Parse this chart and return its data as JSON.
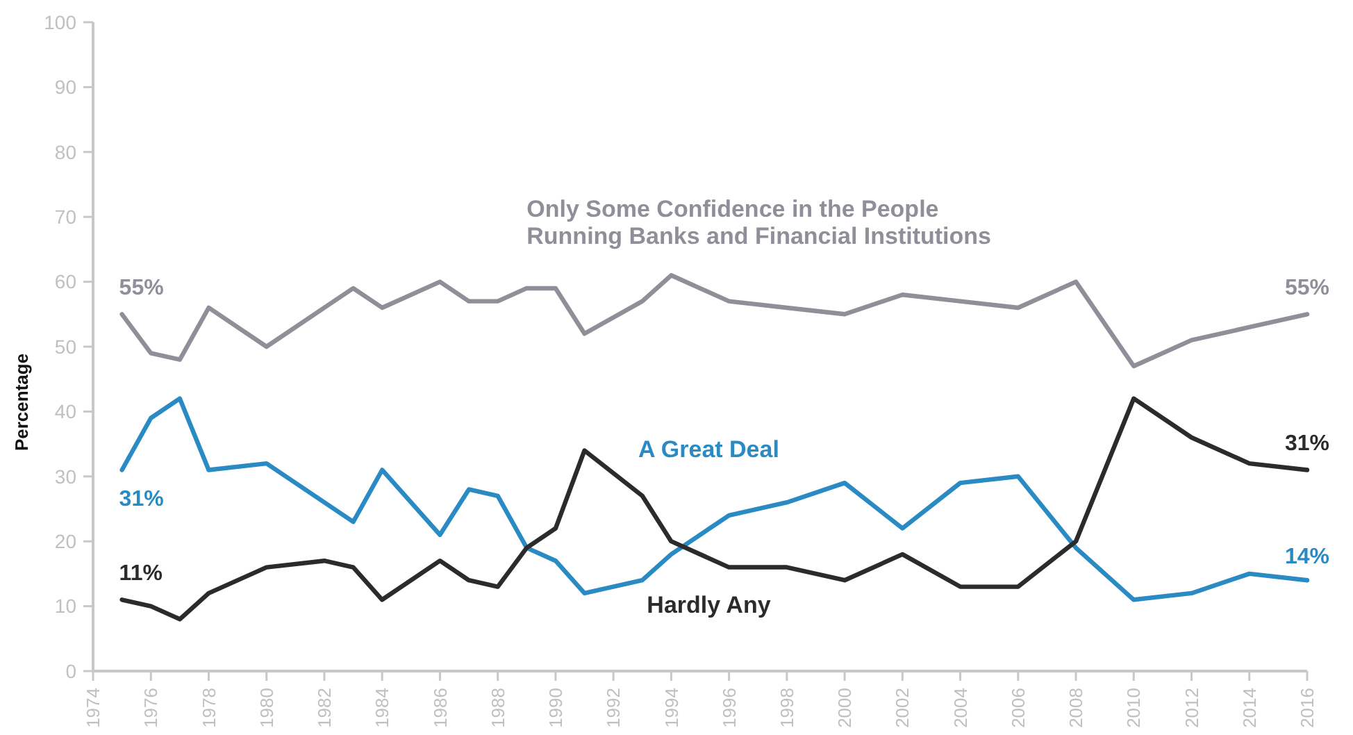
{
  "chart_data": {
    "type": "line",
    "ylabel": "Percentage",
    "x": [
      1975,
      1976,
      1977,
      1978,
      1980,
      1982,
      1983,
      1984,
      1986,
      1987,
      1988,
      1989,
      1990,
      1991,
      1993,
      1994,
      1996,
      1998,
      2000,
      2002,
      2004,
      2006,
      2008,
      2010,
      2012,
      2014,
      2016
    ],
    "xlim": [
      1974,
      2016
    ],
    "xticks": [
      1974,
      1976,
      1978,
      1980,
      1982,
      1984,
      1986,
      1988,
      1990,
      1992,
      1994,
      1996,
      1998,
      2000,
      2002,
      2004,
      2006,
      2008,
      2010,
      2012,
      2014,
      2016
    ],
    "ylim": [
      0,
      100
    ],
    "yticks": [
      0,
      10,
      20,
      30,
      40,
      50,
      60,
      70,
      80,
      90,
      100
    ],
    "grid": false,
    "marker": "none",
    "line_style": "solid",
    "series": [
      {
        "name": "Only Some Confidence in the People\nRunning Banks and Financial Institutions",
        "color": "#8e8f98",
        "values": [
          55,
          49,
          48,
          56,
          50,
          56,
          59,
          56,
          60,
          57,
          57,
          59,
          59,
          52,
          57,
          61,
          57,
          56,
          55,
          58,
          57,
          56,
          60,
          47,
          51,
          53,
          55
        ],
        "value_labels": [
          "55%",
          null,
          null,
          null,
          null,
          null,
          null,
          null,
          null,
          null,
          null,
          null,
          null,
          null,
          null,
          null,
          null,
          null,
          null,
          null,
          null,
          null,
          null,
          null,
          null,
          null,
          "55%"
        ]
      },
      {
        "name": "A Great Deal",
        "color": "#2a8bc4",
        "values": [
          31,
          39,
          42,
          31,
          32,
          26,
          23,
          31,
          21,
          28,
          27,
          19,
          17,
          12,
          14,
          18,
          24,
          26,
          29,
          22,
          29,
          30,
          19,
          11,
          12,
          15,
          14
        ],
        "value_labels": [
          "31%",
          null,
          null,
          null,
          null,
          null,
          null,
          null,
          null,
          null,
          null,
          null,
          null,
          null,
          null,
          null,
          null,
          null,
          null,
          null,
          null,
          null,
          null,
          null,
          null,
          null,
          "14%"
        ]
      },
      {
        "name": "Hardly Any",
        "color": "#2b2b2d",
        "values": [
          11,
          10,
          8,
          12,
          16,
          17,
          16,
          11,
          17,
          14,
          13,
          19,
          22,
          34,
          27,
          20,
          16,
          16,
          14,
          18,
          13,
          13,
          20,
          42,
          36,
          32,
          31
        ],
        "value_labels": [
          "11%",
          null,
          null,
          null,
          null,
          null,
          null,
          null,
          null,
          null,
          null,
          null,
          null,
          null,
          null,
          null,
          null,
          null,
          null,
          null,
          null,
          null,
          null,
          null,
          null,
          null,
          "31%"
        ]
      }
    ]
  }
}
